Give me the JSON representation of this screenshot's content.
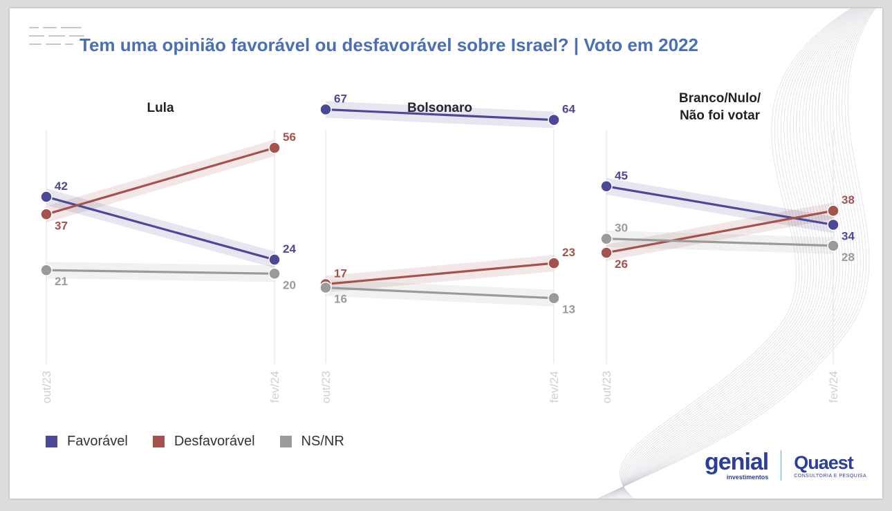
{
  "title": "Tem uma opinião favorável ou desfavorável sobre Israel? | Voto em 2022",
  "colors": {
    "favoravel": "#4b4895",
    "desfavoravel": "#a3524e",
    "nsnr": "#9a9a9a"
  },
  "legend": [
    {
      "key": "favoravel",
      "label": "Favorável",
      "color": "#4b4895"
    },
    {
      "key": "desfavoravel",
      "label": "Desfavorável",
      "color": "#a3524e"
    },
    {
      "key": "nsnr",
      "label": "NS/NR",
      "color": "#9a9a9a"
    }
  ],
  "logos": {
    "genial": "genial",
    "genial_sub": "investimentos",
    "quaest": "Quaest",
    "quaest_sub": "CONSULTORIA E PESQUISA"
  },
  "chart_data": {
    "type": "line",
    "x": [
      "out/23",
      "fev/24"
    ],
    "legend_position": "bottom-left",
    "panels": [
      {
        "title": "Lula",
        "series": [
          {
            "name": "Favorável",
            "key": "favoravel",
            "values": [
              42,
              24
            ]
          },
          {
            "name": "Desfavorável",
            "key": "desfavoravel",
            "values": [
              37,
              56
            ]
          },
          {
            "name": "NS/NR",
            "key": "nsnr",
            "values": [
              21,
              20
            ]
          }
        ]
      },
      {
        "title": "Bolsonaro",
        "series": [
          {
            "name": "Favorável",
            "key": "favoravel",
            "values": [
              67,
              64
            ]
          },
          {
            "name": "Desfavorável",
            "key": "desfavoravel",
            "values": [
              17,
              23
            ]
          },
          {
            "name": "NS/NR",
            "key": "nsnr",
            "values": [
              16,
              13
            ]
          }
        ]
      },
      {
        "title": "Branco/Nulo/\nNão foi votar",
        "series": [
          {
            "name": "Favorável",
            "key": "favoravel",
            "values": [
              45,
              34
            ]
          },
          {
            "name": "Desfavorável",
            "key": "desfavoravel",
            "values": [
              26,
              38
            ]
          },
          {
            "name": "NS/NR",
            "key": "nsnr",
            "values": [
              30,
              28
            ]
          }
        ]
      }
    ]
  }
}
